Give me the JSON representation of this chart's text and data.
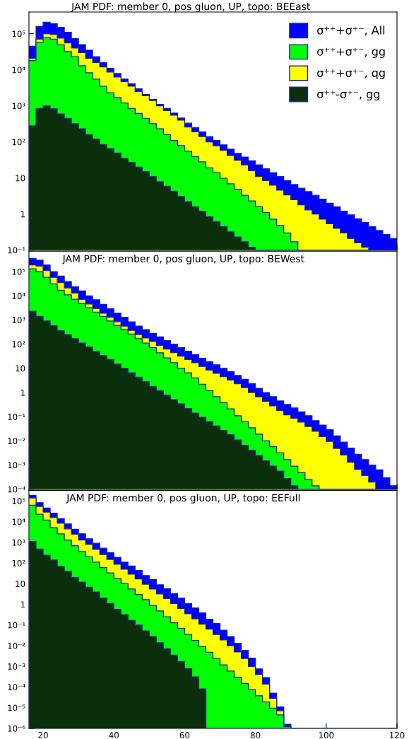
{
  "chart_data": [
    {
      "type": "histogram",
      "title": "JAM PDF: member 0, pos gluon, UP, topo: BEEast",
      "legend": "top right",
      "tick_labels": "y",
      "bins": [
        16,
        18,
        20,
        22,
        24,
        26,
        28,
        30,
        32,
        34,
        36,
        38,
        40,
        42,
        44,
        46,
        48,
        50,
        52,
        54,
        56,
        58,
        60,
        62,
        64,
        66,
        68,
        70,
        72,
        74,
        76,
        78,
        80,
        82,
        84,
        86,
        88,
        90,
        92,
        94,
        96,
        98,
        100,
        102,
        104,
        106,
        108,
        110,
        112,
        114,
        116,
        118,
        120
      ],
      "xlim": [
        16,
        120
      ],
      "xticks": [
        20,
        40,
        60,
        80,
        100,
        120
      ],
      "log": "y",
      "ylim": [
        0.1,
        400000
      ],
      "yticks": [
        {
          "value": 0.1,
          "label": "10⁻¹"
        },
        1,
        10,
        {
          "value": 100,
          "label": "10²"
        },
        {
          "value": 1000,
          "label": "10³"
        },
        {
          "value": 10000,
          "label": "10⁴"
        },
        {
          "value": 100000,
          "label": "10⁵"
        }
      ],
      "series": [
        {
          "name": "σ⁺⁺+σ⁺⁻, All",
          "color": "#0000ff",
          "values": [
            45000.0,
            160000.0,
            210000.0,
            190000.0,
            150000.0,
            110000.0,
            74000.0,
            50000.0,
            35000.0,
            23000.0,
            16000.0,
            11000.0,
            7900.0,
            5600.0,
            4100.0,
            3000.0,
            2100.0,
            1500.0,
            1100.0,
            850,
            630,
            460,
            330,
            250,
            190,
            140,
            110,
            83,
            63,
            48,
            38,
            30,
            23,
            18,
            14,
            11,
            8.5,
            6.6,
            5.2,
            4.2,
            3.3,
            2.6,
            2,
            1.6,
            1.2,
            0.95,
            0.74,
            0.58,
            0.45,
            0.35,
            0.27,
            0.21
          ]
        },
        {
          "name": "σ⁺⁺+σ⁺⁻, gg",
          "color": "#00ff00",
          "values": [
            18000.0,
            58000.0,
            78000.0,
            71000.0,
            49000.0,
            32000.0,
            23000.0,
            13000.0,
            8300.0,
            5500.0,
            3500.0,
            2300.0,
            1700.0,
            1200.0,
            850,
            620,
            450,
            320,
            230,
            160,
            110,
            79,
            56,
            39,
            28,
            19,
            14,
            9.8,
            6.9,
            4.8,
            3.3,
            2.3,
            1.6,
            1.1,
            0.72,
            0.48,
            0.3,
            0.17,
            null,
            null,
            null,
            null,
            null,
            null,
            null,
            null,
            null,
            null,
            null,
            null,
            null,
            null
          ]
        },
        {
          "name": "σ⁺⁺+σ⁺⁻, qg",
          "color": "#ffff00",
          "values": [
            21000.0,
            71000.0,
            100000.0,
            95000.0,
            76000.0,
            56000.0,
            40000.0,
            30000.0,
            21000.0,
            16000.0,
            12000.0,
            8700.0,
            6300.0,
            4700.0,
            3500.0,
            2500.0,
            1900.0,
            1400.0,
            1000.0,
            740,
            550,
            400,
            260,
            190,
            140,
            100,
            78,
            58,
            42,
            31,
            23,
            16,
            11,
            8.5,
            6.3,
            4.6,
            3.4,
            2.5,
            1.8,
            1.3,
            1,
            0.72,
            0.54,
            0.4,
            0.3,
            0.21,
            0.16,
            0.12,
            null,
            null,
            null,
            null
          ]
        },
        {
          "name": "σ⁺⁺-σ⁺⁻, gg",
          "color": "#0b2e0b",
          "values": [
            280,
            850,
            1000.0,
            830,
            600,
            450,
            320,
            230,
            160,
            120,
            85,
            65,
            49,
            35,
            27,
            20,
            15,
            11,
            7.9,
            5.9,
            4.3,
            3.1,
            2.2,
            1.6,
            1.2,
            0.85,
            0.62,
            0.45,
            0.32,
            0.23,
            0.17,
            0.12,
            null,
            null,
            null,
            null,
            null,
            null,
            null,
            null,
            null,
            null,
            null,
            null,
            null,
            null,
            null,
            null,
            null,
            null,
            null,
            null
          ]
        }
      ]
    },
    {
      "type": "histogram",
      "title": "JAM PDF: member 0, pos gluon, UP, topo: BEWest",
      "tick_labels": "y",
      "bins": [
        16,
        18,
        20,
        22,
        24,
        26,
        28,
        30,
        32,
        34,
        36,
        38,
        40,
        42,
        44,
        46,
        48,
        50,
        52,
        54,
        56,
        58,
        60,
        62,
        64,
        66,
        68,
        70,
        72,
        74,
        76,
        78,
        80,
        82,
        84,
        86,
        88,
        90,
        92,
        94,
        96,
        98,
        100,
        102,
        104,
        106,
        108,
        110,
        112,
        114,
        116,
        118,
        120
      ],
      "xlim": [
        16,
        120
      ],
      "xticks": [
        20,
        40,
        60,
        80,
        100,
        120
      ],
      "log": "y",
      "ylim": [
        0.0001,
        700000
      ],
      "yticks": [
        {
          "value": 0.0001,
          "label": "10⁻⁴"
        },
        {
          "value": 0.001,
          "label": "10⁻³"
        },
        {
          "value": 0.01,
          "label": "10⁻²"
        },
        {
          "value": 0.1,
          "label": "10⁻¹"
        },
        1,
        10,
        {
          "value": 100,
          "label": "10²"
        },
        {
          "value": 1000,
          "label": "10³"
        },
        {
          "value": 10000,
          "label": "10⁴"
        },
        {
          "value": 100000,
          "label": "10⁵"
        }
      ],
      "series": [
        {
          "color": "#0000ff",
          "values": [
            350000.0,
            300000.0,
            190000.0,
            100000.0,
            65000.0,
            39000.0,
            24000.0,
            16000.0,
            10000.0,
            6800.0,
            4400.0,
            2900.0,
            1900.0,
            1300.0,
            830,
            560,
            400,
            280,
            200,
            140,
            100,
            72,
            51,
            37,
            26,
            19,
            14,
            10,
            7.4,
            5.1,
            3.5,
            2.3,
            1.5,
            1,
            0.68,
            0.45,
            0.32,
            0.23,
            0.16,
            0.11,
            0.069,
            0.045,
            0.029,
            0.016,
            0.0089,
            0.005,
            0.0028,
            0.0017,
            0.001,
            0.00063,
            0.0003,
            0.00014
          ]
        },
        {
          "color": "#00ff00",
          "values": [
            130000.0,
            100000.0,
            58000.0,
            31000.0,
            17000.0,
            11000.0,
            7200.0,
            4800.0,
            3200.0,
            2100.0,
            1400.0,
            910,
            600,
            400,
            260,
            170,
            110,
            71,
            44,
            27,
            17,
            10,
            6.5,
            4,
            2.2,
            1.2,
            0.68,
            0.38,
            0.21,
            0.11,
            0.063,
            0.035,
            0.019,
            0.01,
            0.0058,
            0.0032,
            0.0017,
            0.00091,
            0.00049,
            0.00025,
            0.00014,
            null,
            null,
            null,
            null,
            null,
            null,
            null,
            null,
            null,
            null,
            null
          ]
        },
        {
          "color": "#ffff00",
          "values": [
            190000.0,
            170000.0,
            110000.0,
            58000.0,
            35000.0,
            21000.0,
            13000.0,
            7100.0,
            4600.0,
            3000.0,
            1900.0,
            1300.0,
            850,
            560,
            370,
            250,
            180,
            130,
            89,
            63,
            45,
            32,
            23,
            17,
            12,
            8.5,
            6.2,
            4.5,
            3.3,
            2.3,
            1.6,
            1,
            0.66,
            0.43,
            0.28,
            0.18,
            0.12,
            0.087,
            0.06,
            0.039,
            0.025,
            0.015,
            0.0095,
            0.0049,
            0.0026,
            0.0013,
            0.00066,
            0.00037,
            0.0002,
            null,
            null,
            null
          ]
        },
        {
          "color": "#0b2e0b",
          "values": [
            2300.0,
            1400.0,
            910,
            590,
            360,
            250,
            170,
            110,
            76,
            50,
            34,
            23,
            15,
            10,
            6.5,
            4.3,
            2.8,
            1.8,
            1.2,
            0.79,
            0.51,
            0.34,
            0.22,
            0.14,
            0.095,
            0.063,
            0.041,
            0.027,
            0.018,
            0.011,
            0.0066,
            0.0041,
            0.0025,
            0.0015,
            0.00091,
            0.00056,
            0.00028,
            0.00014,
            null,
            null,
            null,
            null,
            null,
            null,
            null,
            null,
            null,
            null,
            null,
            null,
            null,
            null
          ]
        }
      ]
    },
    {
      "type": "histogram",
      "title": "JAM PDF: member 0, pos gluon, UP, topo: EEFull",
      "bins": [
        16,
        18,
        20,
        22,
        24,
        26,
        28,
        30,
        32,
        34,
        36,
        38,
        40,
        42,
        44,
        46,
        48,
        50,
        52,
        54,
        56,
        58,
        60,
        62,
        64,
        66,
        68,
        70,
        72,
        74,
        76,
        78,
        80,
        82,
        84,
        86,
        88,
        90,
        92,
        94,
        96,
        98,
        100,
        102,
        104,
        106,
        108,
        110,
        112,
        114,
        116,
        118,
        120
      ],
      "xlim": [
        16,
        120
      ],
      "xticks": [
        20,
        40,
        60,
        80,
        100,
        120
      ],
      "log": "y",
      "ylim": [
        1e-06,
        330000
      ],
      "yticks": [
        {
          "value": 1e-06,
          "label": "10⁻⁶"
        },
        {
          "value": 1e-05,
          "label": "10⁻⁵"
        },
        {
          "value": 0.0001,
          "label": "10⁻⁴"
        },
        {
          "value": 0.001,
          "label": "10⁻³"
        },
        {
          "value": 0.01,
          "label": "10⁻²"
        },
        {
          "value": 0.1,
          "label": "10⁻¹"
        },
        1,
        10,
        {
          "value": 100,
          "label": "10²"
        },
        {
          "value": 1000,
          "label": "10³"
        },
        {
          "value": 10000,
          "label": "10⁴"
        },
        {
          "value": 100000,
          "label": "10⁵"
        }
      ],
      "series": [
        {
          "color": "#0000ff",
          "values": [
            190000.0,
            83000.0,
            46000.0,
            26000.0,
            14000.0,
            7800.0,
            4300.0,
            2600.0,
            1500.0,
            910,
            520,
            320,
            190,
            110,
            72,
            44,
            25,
            16,
            8.9,
            5.8,
            3.3,
            2,
            1.1,
            0.68,
            0.39,
            0.19,
            0.12,
            0.056,
            0.028,
            0.013,
            0.006,
            0.0025,
            0.00076,
            0.00029,
            5.1e-05,
            1.1e-05,
            1.6e-06,
            null,
            null,
            null,
            null,
            null,
            null,
            null,
            null,
            null,
            null,
            null,
            null,
            null,
            null,
            null
          ]
        },
        {
          "color": "#00ff00",
          "values": [
            63000.0,
            23000.0,
            12000.0,
            5200.0,
            2600.0,
            1300.0,
            690,
            360,
            200,
            110,
            60,
            33,
            18,
            10,
            5.5,
            3,
            1.7,
            0.89,
            0.48,
            0.25,
            0.13,
            0.069,
            0.035,
            0.018,
            0.0093,
            0.0048,
            0.0024,
            0.0012,
            0.0006,
            0.0003,
            0.00015,
            7.6e-05,
            3.8e-05,
            1.9e-05,
            9.5e-06,
            4.5e-06,
            1.2e-06,
            null,
            null,
            null,
            null,
            null,
            null,
            null,
            null,
            null,
            null,
            null,
            null,
            null,
            null,
            null
          ]
        },
        {
          "color": "#ffff00",
          "values": [
            140000.0,
            55000.0,
            29000.0,
            16000.0,
            8500.0,
            4500.0,
            2500.0,
            1300.0,
            790,
            460,
            260,
            150,
            87,
            50,
            29,
            17,
            9.5,
            5.5,
            3.2,
            1.9,
            1.1,
            0.63,
            0.35,
            0.2,
            0.11,
            0.063,
            0.035,
            0.019,
            0.01,
            0.005,
            0.0024,
            0.001,
            0.0004,
            0.00014,
            2.8e-05,
            7.1e-06,
            1.3e-06,
            null,
            null,
            null,
            null,
            null,
            null,
            null,
            null,
            null,
            null,
            null,
            null,
            null,
            null,
            null
          ]
        },
        {
          "color": "#0b2e0b",
          "values": [
            1100.0,
            480,
            240,
            140,
            71,
            40,
            20,
            12,
            6.8,
            4,
            2,
            1.1,
            0.58,
            0.32,
            0.17,
            0.1,
            0.052,
            0.028,
            0.014,
            0.0071,
            0.0035,
            0.0017,
            0.00079,
            0.00031,
            8.1e-05,
            null,
            null,
            null,
            null,
            null,
            null,
            null,
            null,
            null,
            null,
            null,
            null,
            null,
            null,
            null,
            null,
            null,
            null,
            null,
            null,
            null,
            null,
            null,
            null,
            null,
            null,
            null
          ]
        }
      ]
    }
  ]
}
